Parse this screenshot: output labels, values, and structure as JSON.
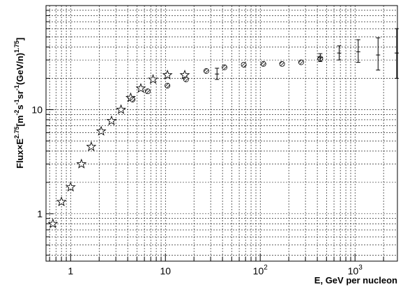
{
  "chart_data": {
    "type": "scatter",
    "title": "",
    "xlabel": "E, GeV per nucleon",
    "ylabel": {
      "text": "Flux×E",
      "sup1": "2.75",
      "mid": "[m",
      "sup2": "-2",
      "s": "s",
      "sup3": "-1",
      "sr": "sr",
      "sup4": "-1",
      "gev": "(GeV/n)",
      "sup5": "1.75",
      "close": "]"
    },
    "x_scale": "log",
    "y_scale": "log",
    "xlim": [
      0.55,
      2800
    ],
    "ylim": [
      0.35,
      100
    ],
    "x_ticks": [
      {
        "value": 1,
        "label": "1"
      },
      {
        "value": 10,
        "label": "10"
      },
      {
        "value": 100,
        "label": "10",
        "exp": "2"
      },
      {
        "value": 1000,
        "label": "10",
        "exp": "3"
      }
    ],
    "y_ticks": [
      {
        "value": 1,
        "label": "1"
      },
      {
        "value": 10,
        "label": "10"
      }
    ],
    "grid": true,
    "series": [
      {
        "marker": "star",
        "points": [
          {
            "x": 0.65,
            "y": 0.8
          },
          {
            "x": 0.8,
            "y": 1.3
          },
          {
            "x": 1.0,
            "y": 1.8
          },
          {
            "x": 1.3,
            "y": 3.0
          },
          {
            "x": 1.65,
            "y": 4.4
          },
          {
            "x": 2.1,
            "y": 6.2
          },
          {
            "x": 2.7,
            "y": 7.8
          },
          {
            "x": 3.4,
            "y": 10.0
          },
          {
            "x": 4.3,
            "y": 13.0
          },
          {
            "x": 5.5,
            "y": 16.0
          },
          {
            "x": 7.4,
            "y": 19.5
          },
          {
            "x": 10.5,
            "y": 21.5
          },
          {
            "x": 16.0,
            "y": 21.5
          }
        ]
      },
      {
        "marker": "hatched-circle",
        "points": [
          {
            "x": 4.5,
            "y": 12.5
          },
          {
            "x": 6.5,
            "y": 15.0
          },
          {
            "x": 10.5,
            "y": 17.0
          },
          {
            "x": 16.5,
            "y": 19.5
          },
          {
            "x": 27.0,
            "y": 23.5
          },
          {
            "x": 42.0,
            "y": 25.5
          },
          {
            "x": 67.0,
            "y": 27.0
          },
          {
            "x": 108.0,
            "y": 27.5
          },
          {
            "x": 170.0,
            "y": 27.5
          },
          {
            "x": 270.0,
            "y": 28.5
          },
          {
            "x": 430.0,
            "y": 31.0
          }
        ]
      },
      {
        "marker": "errorbar",
        "points": [
          {
            "x": 35.0,
            "y": 22.0,
            "ylo": 19.5,
            "yhi": 25.0
          },
          {
            "x": 430.0,
            "y": 31.5,
            "ylo": 29.0,
            "yhi": 34.5
          },
          {
            "x": 680.0,
            "y": 35.0,
            "ylo": 30.0,
            "yhi": 41.0
          },
          {
            "x": 1080.0,
            "y": 36.0,
            "ylo": 28.5,
            "yhi": 47.0
          },
          {
            "x": 1750.0,
            "y": 33.5,
            "ylo": 24.0,
            "yhi": 49.0
          },
          {
            "x": 2750.0,
            "y": 35.0,
            "ylo": 20.0,
            "yhi": 60.0
          }
        ]
      }
    ]
  }
}
